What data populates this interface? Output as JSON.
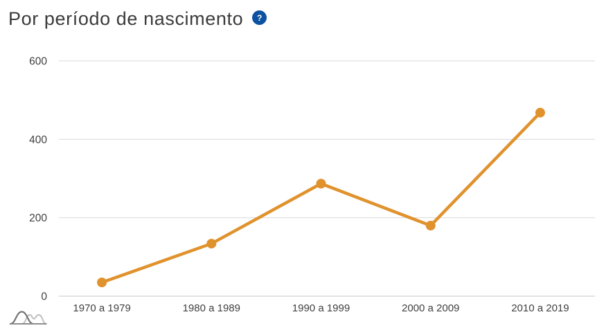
{
  "header": {
    "title": "Por período de nascimento",
    "help_icon": {
      "glyph": "?",
      "background": "#0d52a0",
      "color": "#ffffff"
    }
  },
  "chart_data": {
    "type": "line",
    "title": "Por período de nascimento",
    "categories": [
      "1970 a 1979",
      "1980 a 1989",
      "1990 a 1999",
      "2000 a 2009",
      "2010 a 2019"
    ],
    "values": [
      35,
      134,
      287,
      180,
      468
    ],
    "xlabel": "",
    "ylabel": "",
    "ylim": [
      0,
      600
    ],
    "yticks": [
      0,
      200,
      400,
      600
    ],
    "grid": true,
    "legend": "none",
    "line_color": "#e0922d",
    "marker_color": "#e0922d",
    "gridline_color": "#d9d9d9",
    "baseline_color": "#c4c4c4",
    "tick_label_color": "#3f3f3f"
  },
  "footer": {
    "logo_icon": "distribution-curves-logo"
  }
}
